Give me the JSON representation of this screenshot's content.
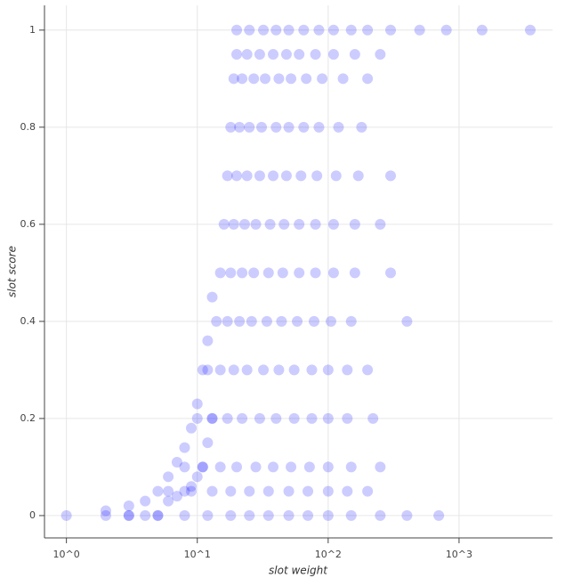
{
  "chart_data": {
    "type": "scatter",
    "xlabel": "slot weight",
    "ylabel": "slot score",
    "xscale": "log",
    "grid": true,
    "color": "#0000ff",
    "xlim": [
      0.68,
      5180
    ],
    "ylim": [
      -0.046,
      1.051
    ],
    "xticks": [
      {
        "value": 1,
        "label": "10^0"
      },
      {
        "value": 10,
        "label": "10^1"
      },
      {
        "value": 100,
        "label": "10^2"
      },
      {
        "value": 1000,
        "label": "10^3"
      }
    ],
    "yticks": [
      0,
      0.2,
      0.4,
      0.6,
      0.8,
      1
    ],
    "x": [
      1,
      2,
      2,
      3,
      3,
      4,
      4,
      5,
      5,
      6,
      6,
      7,
      7,
      8,
      8,
      9,
      9,
      10,
      10,
      11,
      11,
      12,
      12,
      13,
      13,
      3,
      5,
      8,
      12,
      18,
      25,
      35,
      50,
      70,
      100,
      150,
      250,
      400,
      700,
      6,
      9,
      13,
      18,
      25,
      35,
      50,
      70,
      100,
      140,
      200,
      8,
      11,
      15,
      20,
      28,
      38,
      52,
      72,
      100,
      150,
      250,
      10,
      13,
      17,
      22,
      30,
      40,
      55,
      75,
      100,
      140,
      220,
      12,
      15,
      19,
      24,
      32,
      42,
      55,
      75,
      100,
      140,
      200,
      14,
      17,
      21,
      26,
      34,
      44,
      58,
      78,
      105,
      150,
      400,
      15,
      18,
      22,
      27,
      35,
      45,
      60,
      80,
      110,
      160,
      300,
      16,
      19,
      23,
      28,
      36,
      46,
      60,
      80,
      110,
      160,
      250,
      17,
      20,
      24,
      30,
      38,
      48,
      62,
      82,
      115,
      170,
      300,
      18,
      21,
      25,
      31,
      40,
      50,
      65,
      85,
      120,
      180,
      19,
      22,
      27,
      33,
      42,
      52,
      68,
      90,
      130,
      200,
      20,
      24,
      30,
      38,
      48,
      60,
      80,
      110,
      160,
      250,
      20,
      25,
      32,
      40,
      50,
      65,
      85,
      110,
      150,
      200,
      300,
      500,
      800,
      1500,
      3500
    ],
    "values": [
      0,
      0,
      0.01,
      0,
      0.02,
      0,
      0.03,
      0,
      0.05,
      0.03,
      0.08,
      0.04,
      0.11,
      0.05,
      0.14,
      0.06,
      0.18,
      0.08,
      0.23,
      0.1,
      0.3,
      0.15,
      0.36,
      0.2,
      0.45,
      0,
      0,
      0,
      0,
      0,
      0,
      0,
      0,
      0,
      0,
      0,
      0,
      0,
      0,
      0.05,
      0.05,
      0.05,
      0.05,
      0.05,
      0.05,
      0.05,
      0.05,
      0.05,
      0.05,
      0.05,
      0.1,
      0.1,
      0.1,
      0.1,
      0.1,
      0.1,
      0.1,
      0.1,
      0.1,
      0.1,
      0.1,
      0.2,
      0.2,
      0.2,
      0.2,
      0.2,
      0.2,
      0.2,
      0.2,
      0.2,
      0.2,
      0.2,
      0.3,
      0.3,
      0.3,
      0.3,
      0.3,
      0.3,
      0.3,
      0.3,
      0.3,
      0.3,
      0.3,
      0.4,
      0.4,
      0.4,
      0.4,
      0.4,
      0.4,
      0.4,
      0.4,
      0.4,
      0.4,
      0.4,
      0.5,
      0.5,
      0.5,
      0.5,
      0.5,
      0.5,
      0.5,
      0.5,
      0.5,
      0.5,
      0.5,
      0.6,
      0.6,
      0.6,
      0.6,
      0.6,
      0.6,
      0.6,
      0.6,
      0.6,
      0.6,
      0.6,
      0.7,
      0.7,
      0.7,
      0.7,
      0.7,
      0.7,
      0.7,
      0.7,
      0.7,
      0.7,
      0.7,
      0.8,
      0.8,
      0.8,
      0.8,
      0.8,
      0.8,
      0.8,
      0.8,
      0.8,
      0.8,
      0.9,
      0.9,
      0.9,
      0.9,
      0.9,
      0.9,
      0.9,
      0.9,
      0.9,
      0.9,
      0.95,
      0.95,
      0.95,
      0.95,
      0.95,
      0.95,
      0.95,
      0.95,
      0.95,
      0.95,
      1,
      1,
      1,
      1,
      1,
      1,
      1,
      1,
      1,
      1,
      1,
      1,
      1,
      1,
      1
    ]
  }
}
